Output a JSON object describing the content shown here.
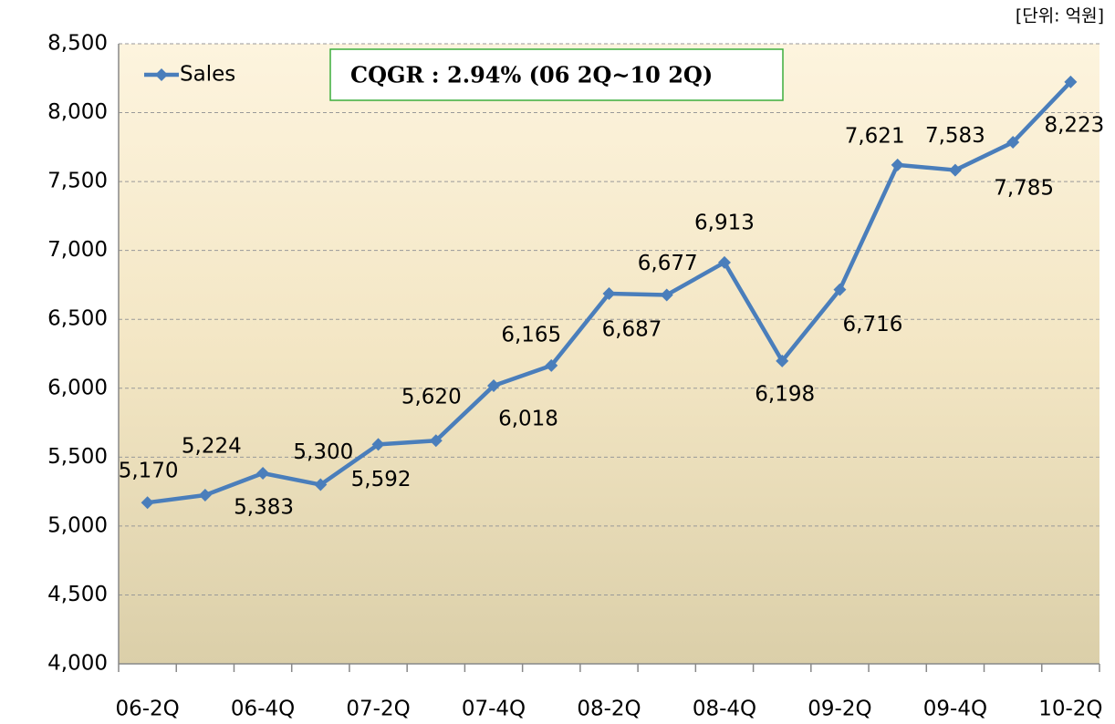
{
  "chart_data": {
    "type": "line",
    "unit_label": "[단위: 억원]",
    "annotation": "CQGR : 2.94% (06 2Q~10 2Q)",
    "categories": [
      "06-2Q",
      null,
      "06-4Q",
      null,
      "07-2Q",
      null,
      "07-4Q",
      null,
      "08-2Q",
      null,
      "08-4Q",
      null,
      "09-2Q",
      null,
      "09-4Q",
      null,
      "10-2Q"
    ],
    "series": [
      {
        "name": "Sales",
        "color": "#4a7ebb",
        "values": [
          5170,
          5224,
          5383,
          5300,
          5592,
          5620,
          6018,
          6165,
          6687,
          6677,
          6913,
          6198,
          6716,
          7621,
          7583,
          7785,
          8223
        ],
        "value_labels": [
          "5,170",
          "5,224",
          "5,383",
          "5,300",
          "5,592",
          "5,620",
          "6,018",
          "6,165",
          "6,687",
          "6,677",
          "6,913",
          "6,198",
          "6,716",
          "7,621",
          "7,583",
          "7,785",
          "8,223"
        ]
      }
    ],
    "ylim": [
      4000,
      8500
    ],
    "yticks": [
      {
        "value": 4000,
        "label": "4,000"
      },
      {
        "value": 4500,
        "label": "4,500"
      },
      {
        "value": 5000,
        "label": "5,000"
      },
      {
        "value": 5500,
        "label": "5,500"
      },
      {
        "value": 6000,
        "label": "6,000"
      },
      {
        "value": 6500,
        "label": "6,500"
      },
      {
        "value": 7000,
        "label": "7,000"
      },
      {
        "value": 7500,
        "label": "7,500"
      },
      {
        "value": 8000,
        "label": "8,000"
      },
      {
        "value": 8500,
        "label": "8,500"
      }
    ],
    "grid": true,
    "legend": "upper left"
  }
}
